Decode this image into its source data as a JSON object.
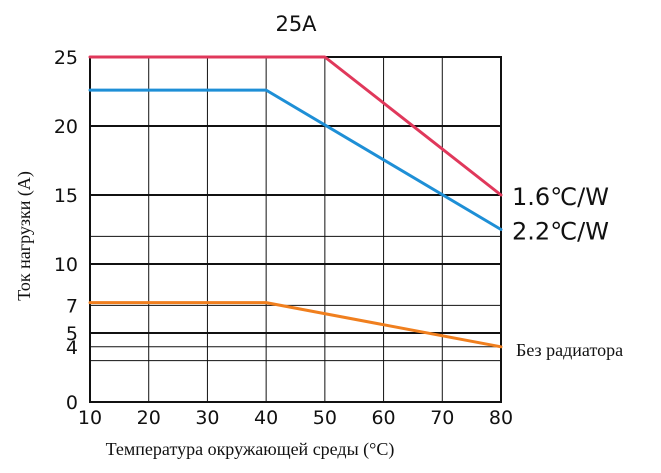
{
  "chart_data": {
    "type": "line",
    "title": "25A",
    "xlabel": "Температура окружающей среды (°C)",
    "ylabel": "Ток нагрузки (A)",
    "xlim": [
      10,
      80
    ],
    "ylim": [
      0,
      25
    ],
    "x_ticks": [
      "10",
      "20",
      "30",
      "40",
      "50",
      "60",
      "70",
      "80"
    ],
    "y_ticks": [
      "25",
      "20",
      "15",
      "10",
      "7",
      "5",
      "4",
      "0"
    ],
    "y_tick_values": [
      25,
      20,
      15,
      10,
      7,
      5,
      4,
      0
    ],
    "grid": true,
    "series": [
      {
        "name": "1.6℃/W",
        "color": "#e0385b",
        "x": [
          10,
          50,
          80
        ],
        "y": [
          25,
          25,
          15
        ]
      },
      {
        "name": "2.2℃/W",
        "color": "#1e8fd6",
        "x": [
          10,
          40,
          80
        ],
        "y": [
          22.6,
          22.6,
          12.5
        ]
      },
      {
        "name": "Без радиатора",
        "color": "#f07f1e",
        "x": [
          10,
          40,
          80
        ],
        "y": [
          7.2,
          7.2,
          4
        ]
      }
    ]
  }
}
